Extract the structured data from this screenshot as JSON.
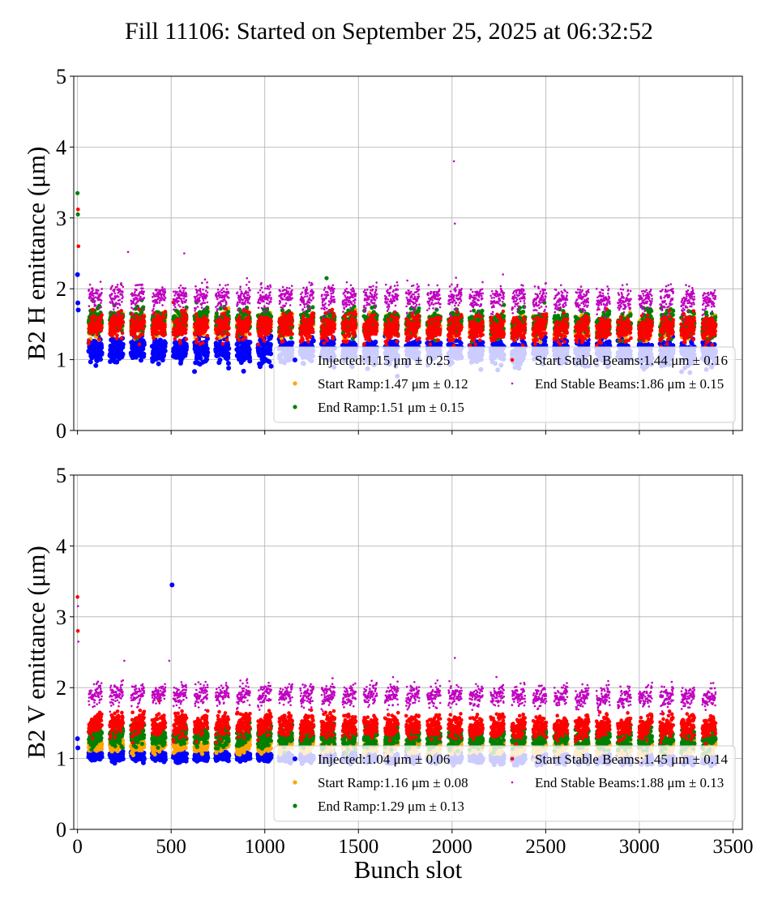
{
  "chart_data": [
    {
      "type": "scatter",
      "title": "Fill 11106: Started on September 25, 2025 at 06:32:52",
      "ylabel": "B2 H emittance (μm)",
      "xlabel": "",
      "xlim": [
        -20,
        3550
      ],
      "ylim": [
        0,
        5
      ],
      "xticks": [
        0,
        500,
        1000,
        1500,
        2000,
        2500,
        3000,
        3500
      ],
      "xtick_labels_shown": false,
      "yticks": [
        0,
        1,
        2,
        3,
        4,
        5
      ],
      "grid": true,
      "legend_position": "lower-right",
      "legend_columns": 2,
      "series": [
        {
          "name": "Injected:1.15 μm ± 0.25",
          "color": "#0000ff",
          "mean": 1.15,
          "std": 0.25,
          "marker_size": 3.0
        },
        {
          "name": "Start Ramp:1.47 μm ± 0.12",
          "color": "#ffa500",
          "mean": 1.47,
          "std": 0.12,
          "marker_size": 2.6
        },
        {
          "name": "End Ramp:1.51 μm ± 0.15",
          "color": "#008000",
          "mean": 1.51,
          "std": 0.15,
          "marker_size": 2.6
        },
        {
          "name": "Start Stable Beams:1.44 μm ± 0.16",
          "color": "#ff0000",
          "mean": 1.44,
          "std": 0.16,
          "marker_size": 2.3
        },
        {
          "name": "End Stable Beams:1.86 μm ± 0.15",
          "color": "#c000c0",
          "mean": 1.86,
          "std": 0.15,
          "marker_size": 1.3
        }
      ],
      "outliers": [
        {
          "series": 4,
          "x": 2010,
          "y": 3.8
        },
        {
          "series": 4,
          "x": 2015,
          "y": 2.92
        },
        {
          "series": 4,
          "x": 270,
          "y": 2.52
        },
        {
          "series": 4,
          "x": 570,
          "y": 2.5
        },
        {
          "series": 2,
          "x": 0,
          "y": 3.35
        },
        {
          "series": 2,
          "x": 2,
          "y": 3.05
        },
        {
          "series": 3,
          "x": 3,
          "y": 3.12
        },
        {
          "series": 3,
          "x": 5,
          "y": 2.6
        },
        {
          "series": 0,
          "x": 0,
          "y": 2.2
        },
        {
          "series": 0,
          "x": 2,
          "y": 1.8
        },
        {
          "series": 0,
          "x": 4,
          "y": 1.7
        },
        {
          "series": 2,
          "x": 1330,
          "y": 2.15
        }
      ]
    },
    {
      "type": "scatter",
      "title": "",
      "ylabel": "B2 V emittance (μm)",
      "xlabel": "Bunch slot",
      "xlim": [
        -20,
        3550
      ],
      "ylim": [
        0,
        5
      ],
      "xticks": [
        0,
        500,
        1000,
        1500,
        2000,
        2500,
        3000,
        3500
      ],
      "xtick_labels_shown": true,
      "yticks": [
        0,
        1,
        2,
        3,
        4,
        5
      ],
      "grid": true,
      "legend_position": "lower-right",
      "legend_columns": 2,
      "series": [
        {
          "name": "Injected:1.04 μm ± 0.06",
          "color": "#0000ff",
          "mean": 1.04,
          "std": 0.06,
          "marker_size": 3.0
        },
        {
          "name": "Start Ramp:1.16 μm ± 0.08",
          "color": "#ffa500",
          "mean": 1.16,
          "std": 0.08,
          "marker_size": 2.6
        },
        {
          "name": "End Ramp:1.29 μm ± 0.13",
          "color": "#008000",
          "mean": 1.29,
          "std": 0.13,
          "marker_size": 2.6
        },
        {
          "name": "Start Stable Beams:1.45 μm ± 0.14",
          "color": "#ff0000",
          "mean": 1.45,
          "std": 0.14,
          "marker_size": 2.3
        },
        {
          "name": "End Stable Beams:1.88 μm ± 0.13",
          "color": "#c000c0",
          "mean": 1.88,
          "std": 0.13,
          "marker_size": 1.3
        }
      ],
      "outliers": [
        {
          "series": 0,
          "x": 505,
          "y": 3.45
        },
        {
          "series": 3,
          "x": 0,
          "y": 3.28
        },
        {
          "series": 3,
          "x": 2,
          "y": 2.8
        },
        {
          "series": 4,
          "x": 3,
          "y": 3.15
        },
        {
          "series": 4,
          "x": 5,
          "y": 2.65
        },
        {
          "series": 4,
          "x": 2015,
          "y": 2.42
        },
        {
          "series": 4,
          "x": 250,
          "y": 2.38
        },
        {
          "series": 4,
          "x": 490,
          "y": 2.38
        },
        {
          "series": 0,
          "x": 0,
          "y": 1.28
        },
        {
          "series": 0,
          "x": 2,
          "y": 1.15
        }
      ]
    }
  ]
}
